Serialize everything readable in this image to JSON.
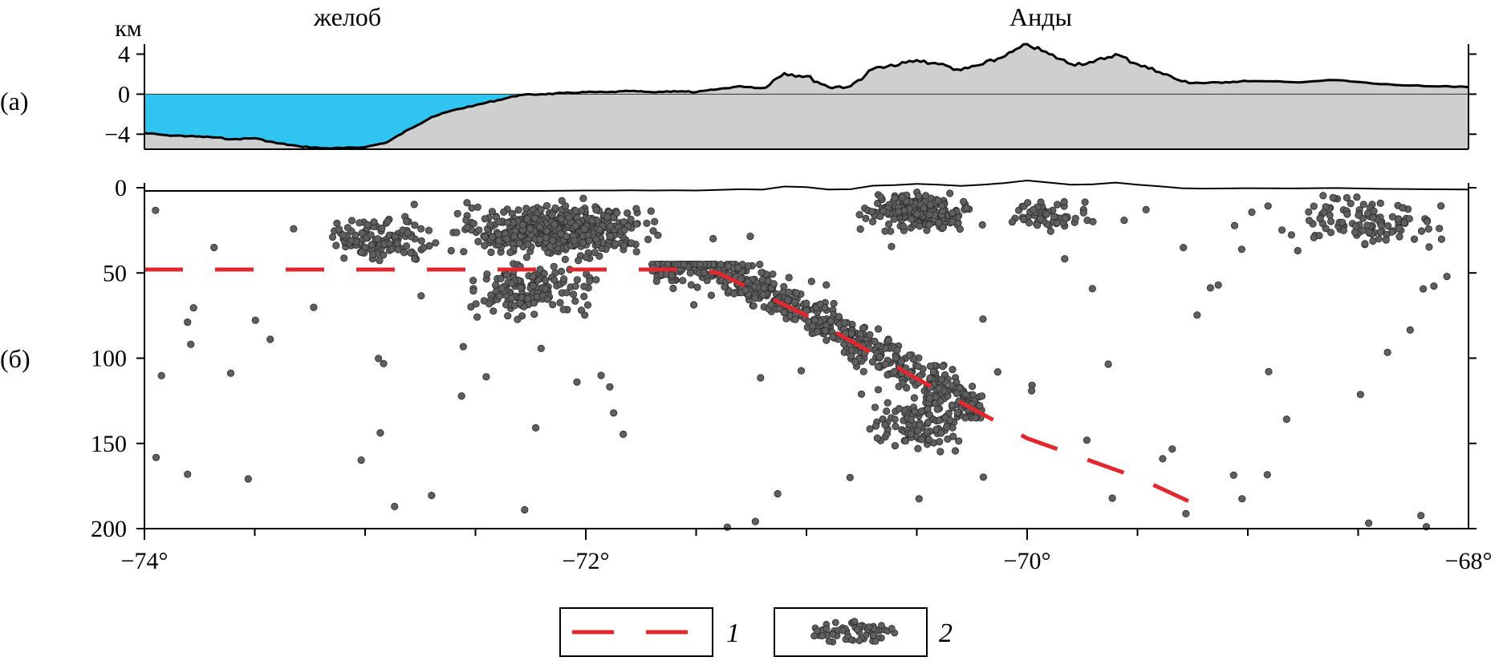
{
  "panel_labels": {
    "a": "(а)",
    "b": "(б)"
  },
  "regions": {
    "trench": "желоб",
    "andes": "Анды"
  },
  "unit_label": "км",
  "legend": {
    "item1": "1",
    "item2": "2"
  },
  "colors": {
    "sea": "#30c5f0",
    "land": "#cfcfcf",
    "profile": "#000000",
    "slab": "#e0282e",
    "quake": "#5f5f5f"
  },
  "chart_data": [
    {
      "type": "area",
      "panel": "a",
      "title": "",
      "ylabel": "км",
      "xlim": [
        -74,
        -68
      ],
      "ylim": [
        -5.5,
        5
      ],
      "y_ticks": [
        4,
        0,
        -4
      ],
      "y_tick_labels": [
        "4",
        "0",
        "−4"
      ],
      "sea_level": 0,
      "series": [
        {
          "x": [
            -74.0,
            -73.9,
            -73.8,
            -73.7,
            -73.6,
            -73.5,
            -73.4,
            -73.3,
            -73.2,
            -73.1,
            -73.0,
            -72.9,
            -72.8,
            -72.7,
            -72.6,
            -72.5,
            -72.4,
            -72.3,
            -72.2,
            -72.1,
            -72.0,
            -71.9,
            -71.8,
            -71.7,
            -71.6,
            -71.5,
            -71.4,
            -71.3,
            -71.2,
            -71.1,
            -71.0,
            -70.9,
            -70.8,
            -70.7,
            -70.6,
            -70.5,
            -70.4,
            -70.3,
            -70.2,
            -70.1,
            -70.0,
            -69.9,
            -69.8,
            -69.7,
            -69.6,
            -69.5,
            -69.4,
            -69.3,
            -69.2,
            -69.1,
            -69.0,
            -68.8,
            -68.6,
            -68.4,
            -68.2,
            -68.0
          ],
          "y": [
            -3.9,
            -4.1,
            -4.2,
            -4.3,
            -4.5,
            -4.4,
            -4.9,
            -5.2,
            -5.4,
            -5.4,
            -5.3,
            -4.8,
            -3.5,
            -2.3,
            -1.6,
            -1.1,
            -0.6,
            -0.1,
            0.0,
            0.1,
            0.2,
            0.2,
            0.3,
            0.2,
            0.3,
            0.2,
            0.5,
            0.8,
            0.6,
            2.1,
            1.8,
            0.7,
            0.8,
            2.5,
            2.8,
            3.4,
            3.0,
            2.4,
            3.0,
            3.8,
            5.0,
            4.0,
            3.0,
            3.2,
            4.0,
            3.0,
            2.2,
            1.3,
            1.1,
            1.2,
            1.3,
            1.2,
            1.4,
            1.0,
            0.8,
            0.7
          ]
        }
      ]
    },
    {
      "type": "scatter",
      "panel": "b",
      "title": "",
      "xlabel": "",
      "ylabel": "",
      "xlim": [
        -74,
        -68
      ],
      "ylim": [
        200,
        0
      ],
      "x_ticks": [
        -74,
        -72,
        -70,
        -68
      ],
      "x_tick_labels": [
        "−74°",
        "−72°",
        "−70°",
        "−68°"
      ],
      "y_ticks": [
        0,
        50,
        100,
        150,
        200
      ],
      "y_tick_labels": [
        "0",
        "50",
        "100",
        "150",
        "200"
      ],
      "slab_top": {
        "x": [
          -74.0,
          -73.0,
          -72.0,
          -71.5,
          -71.4,
          -71.0,
          -70.5,
          -70.0,
          -69.5,
          -69.2
        ],
        "y": [
          48,
          48,
          48,
          48,
          50,
          75,
          112,
          147,
          170,
          188
        ]
      },
      "clusters": [
        {
          "x_range": [
            -72.7,
            -71.6
          ],
          "depth_range": [
            5,
            45
          ],
          "count": 520
        },
        {
          "x_range": [
            -73.3,
            -72.6
          ],
          "depth_range": [
            15,
            45
          ],
          "count": 120
        },
        {
          "x_range": [
            -72.6,
            -71.9
          ],
          "depth_range": [
            40,
            80
          ],
          "count": 170
        },
        {
          "x_range": [
            -71.7,
            -70.2
          ],
          "depth_range": [
            45,
            135
          ],
          "count": 620,
          "along_slab": true
        },
        {
          "x_range": [
            -70.8,
            -70.2
          ],
          "depth_range": [
            115,
            160
          ],
          "count": 110
        },
        {
          "x_range": [
            -70.8,
            -70.2
          ],
          "depth_range": [
            0,
            28
          ],
          "count": 220
        },
        {
          "x_range": [
            -70.2,
            -69.6
          ],
          "depth_range": [
            5,
            28
          ],
          "count": 55
        },
        {
          "x_range": [
            -68.9,
            -68.0
          ],
          "depth_range": [
            0,
            40
          ],
          "count": 110
        },
        {
          "x_range": [
            -74.0,
            -68.0
          ],
          "depth_range": [
            0,
            200
          ],
          "count": 110
        }
      ]
    }
  ]
}
